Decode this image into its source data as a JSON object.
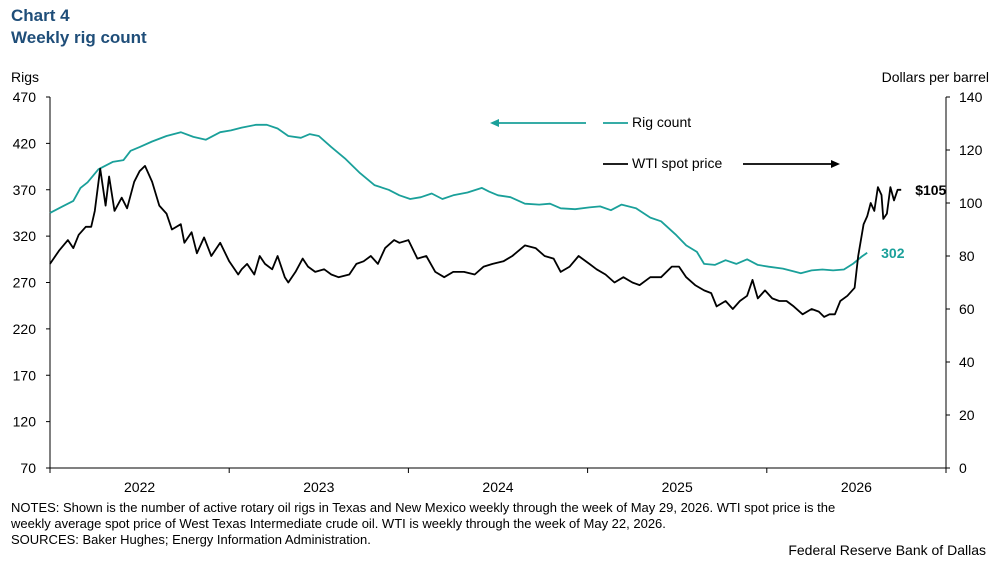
{
  "header": {
    "title_line1": "Chart 4",
    "title_line2": "Weekly rig count"
  },
  "notes": {
    "line1": "NOTES: Shown is the number of active rotary oil rigs in Texas and New Mexico weekly through the week of May 29, 2026. WTI spot price is the",
    "line2": "weekly average spot price of West Texas Intermediate crude oil. WTI is weekly through the week of May 22, 2026.",
    "sources": "SOURCES: Baker Hughes; Energy Information Administration."
  },
  "credit": "Federal Reserve Bank of Dallas",
  "colors": {
    "rig": "#1aa09a",
    "wti": "#000000",
    "axis": "#000000",
    "title": "#1f4e79"
  },
  "chart_data": {
    "type": "line",
    "left_axis_label": "Rigs",
    "right_axis_label": "Dollars per barrel",
    "left_ylim": [
      70,
      470
    ],
    "left_ticks": [
      "470",
      "420",
      "370",
      "320",
      "270",
      "220",
      "170",
      "120",
      "70"
    ],
    "right_ylim": [
      0,
      140
    ],
    "right_ticks": [
      "140",
      "120",
      "100",
      "80",
      "60",
      "40",
      "20",
      "0"
    ],
    "x_labels": [
      "2022",
      "2023",
      "2024",
      "2025",
      "2026"
    ],
    "xlim": [
      2021.55,
      2026.55
    ],
    "grid": false,
    "legend": [
      {
        "label": "Rig count",
        "arrow": "left"
      },
      {
        "label": "WTI spot price",
        "arrow": "right"
      }
    ],
    "end_labels": {
      "wti": "$105",
      "rig": "302"
    },
    "series": [
      {
        "name": "Rig count",
        "axis": "left",
        "points": [
          [
            2021.55,
            345
          ],
          [
            2021.62,
            352
          ],
          [
            2021.68,
            358
          ],
          [
            2021.72,
            372
          ],
          [
            2021.76,
            378
          ],
          [
            2021.82,
            392
          ],
          [
            2021.9,
            400
          ],
          [
            2021.96,
            402
          ],
          [
            2022.0,
            412
          ],
          [
            2022.05,
            416
          ],
          [
            2022.12,
            422
          ],
          [
            2022.2,
            428
          ],
          [
            2022.28,
            432
          ],
          [
            2022.35,
            427
          ],
          [
            2022.42,
            424
          ],
          [
            2022.5,
            432
          ],
          [
            2022.56,
            434
          ],
          [
            2022.62,
            437
          ],
          [
            2022.7,
            440
          ],
          [
            2022.76,
            440
          ],
          [
            2022.82,
            436
          ],
          [
            2022.88,
            428
          ],
          [
            2022.95,
            426
          ],
          [
            2023.0,
            430
          ],
          [
            2023.05,
            428
          ],
          [
            2023.12,
            416
          ],
          [
            2023.2,
            403
          ],
          [
            2023.28,
            388
          ],
          [
            2023.36,
            375
          ],
          [
            2023.44,
            370
          ],
          [
            2023.5,
            364
          ],
          [
            2023.56,
            360
          ],
          [
            2023.62,
            362
          ],
          [
            2023.68,
            366
          ],
          [
            2023.74,
            360
          ],
          [
            2023.8,
            364
          ],
          [
            2023.88,
            367
          ],
          [
            2023.96,
            372
          ],
          [
            2024.0,
            368
          ],
          [
            2024.05,
            364
          ],
          [
            2024.12,
            362
          ],
          [
            2024.2,
            355
          ],
          [
            2024.28,
            354
          ],
          [
            2024.34,
            355
          ],
          [
            2024.4,
            350
          ],
          [
            2024.48,
            349
          ],
          [
            2024.56,
            351
          ],
          [
            2024.62,
            352
          ],
          [
            2024.68,
            348
          ],
          [
            2024.74,
            354
          ],
          [
            2024.82,
            350
          ],
          [
            2024.9,
            340
          ],
          [
            2024.96,
            336
          ],
          [
            2025.04,
            322
          ],
          [
            2025.1,
            310
          ],
          [
            2025.16,
            303
          ],
          [
            2025.2,
            290
          ],
          [
            2025.26,
            289
          ],
          [
            2025.32,
            294
          ],
          [
            2025.38,
            290
          ],
          [
            2025.44,
            295
          ],
          [
            2025.5,
            289
          ],
          [
            2025.56,
            287
          ],
          [
            2025.64,
            285
          ],
          [
            2025.7,
            282
          ],
          [
            2025.74,
            280
          ],
          [
            2025.8,
            283
          ],
          [
            2025.86,
            284
          ],
          [
            2025.92,
            283
          ],
          [
            2025.98,
            284
          ],
          [
            2026.03,
            290
          ],
          [
            2026.08,
            298
          ],
          [
            2026.11,
            302
          ]
        ]
      },
      {
        "name": "WTI spot price",
        "axis": "right",
        "points": [
          [
            2021.55,
            77
          ],
          [
            2021.6,
            82
          ],
          [
            2021.65,
            86
          ],
          [
            2021.68,
            83
          ],
          [
            2021.71,
            88
          ],
          [
            2021.75,
            91
          ],
          [
            2021.78,
            91
          ],
          [
            2021.8,
            97
          ],
          [
            2021.83,
            113
          ],
          [
            2021.86,
            99
          ],
          [
            2021.88,
            110
          ],
          [
            2021.91,
            97
          ],
          [
            2021.95,
            102
          ],
          [
            2021.98,
            98
          ],
          [
            2022.02,
            108
          ],
          [
            2022.05,
            112
          ],
          [
            2022.08,
            114
          ],
          [
            2022.12,
            108
          ],
          [
            2022.16,
            99
          ],
          [
            2022.2,
            96
          ],
          [
            2022.23,
            90
          ],
          [
            2022.28,
            92
          ],
          [
            2022.3,
            85
          ],
          [
            2022.34,
            89
          ],
          [
            2022.37,
            81
          ],
          [
            2022.41,
            87
          ],
          [
            2022.45,
            80
          ],
          [
            2022.5,
            85
          ],
          [
            2022.55,
            78
          ],
          [
            2022.6,
            73
          ],
          [
            2022.62,
            75
          ],
          [
            2022.65,
            77
          ],
          [
            2022.69,
            73
          ],
          [
            2022.72,
            80
          ],
          [
            2022.75,
            77
          ],
          [
            2022.79,
            75
          ],
          [
            2022.82,
            80
          ],
          [
            2022.86,
            72
          ],
          [
            2022.88,
            70
          ],
          [
            2022.92,
            74
          ],
          [
            2022.96,
            79
          ],
          [
            2022.99,
            76
          ],
          [
            2023.03,
            74
          ],
          [
            2023.08,
            75
          ],
          [
            2023.12,
            73
          ],
          [
            2023.16,
            72
          ],
          [
            2023.22,
            73
          ],
          [
            2023.26,
            77
          ],
          [
            2023.3,
            78
          ],
          [
            2023.34,
            80
          ],
          [
            2023.38,
            77
          ],
          [
            2023.42,
            83
          ],
          [
            2023.47,
            86
          ],
          [
            2023.5,
            85
          ],
          [
            2023.55,
            86
          ],
          [
            2023.6,
            79
          ],
          [
            2023.65,
            80
          ],
          [
            2023.7,
            74
          ],
          [
            2023.75,
            72
          ],
          [
            2023.8,
            74
          ],
          [
            2023.86,
            74
          ],
          [
            2023.92,
            73
          ],
          [
            2023.97,
            76
          ],
          [
            2024.02,
            77
          ],
          [
            2024.08,
            78
          ],
          [
            2024.13,
            80
          ],
          [
            2024.2,
            84
          ],
          [
            2024.26,
            83
          ],
          [
            2024.31,
            80
          ],
          [
            2024.36,
            79
          ],
          [
            2024.4,
            74
          ],
          [
            2024.45,
            76
          ],
          [
            2024.5,
            80
          ],
          [
            2024.56,
            77
          ],
          [
            2024.6,
            75
          ],
          [
            2024.65,
            73
          ],
          [
            2024.7,
            70
          ],
          [
            2024.75,
            72
          ],
          [
            2024.8,
            70
          ],
          [
            2024.84,
            69
          ],
          [
            2024.9,
            72
          ],
          [
            2024.96,
            72
          ],
          [
            2025.02,
            76
          ],
          [
            2025.06,
            76
          ],
          [
            2025.1,
            72
          ],
          [
            2025.15,
            69
          ],
          [
            2025.2,
            67
          ],
          [
            2025.24,
            66
          ],
          [
            2025.27,
            61
          ],
          [
            2025.32,
            63
          ],
          [
            2025.36,
            60
          ],
          [
            2025.4,
            63
          ],
          [
            2025.44,
            65
          ],
          [
            2025.47,
            71
          ],
          [
            2025.5,
            64
          ],
          [
            2025.54,
            67
          ],
          [
            2025.58,
            64
          ],
          [
            2025.62,
            63
          ],
          [
            2025.66,
            63
          ],
          [
            2025.7,
            61
          ],
          [
            2025.75,
            58
          ],
          [
            2025.8,
            60
          ],
          [
            2025.84,
            59
          ],
          [
            2025.87,
            57
          ],
          [
            2025.9,
            58
          ],
          [
            2025.93,
            58
          ],
          [
            2025.96,
            63
          ],
          [
            2026.0,
            65
          ],
          [
            2026.04,
            68
          ],
          [
            2026.06,
            80
          ],
          [
            2026.09,
            92
          ],
          [
            2026.11,
            95
          ],
          [
            2026.13,
            100
          ],
          [
            2026.15,
            97
          ],
          [
            2026.17,
            106
          ],
          [
            2026.19,
            103
          ],
          [
            2026.2,
            94
          ],
          [
            2026.22,
            96
          ],
          [
            2026.24,
            106
          ],
          [
            2026.26,
            101
          ],
          [
            2026.28,
            105
          ],
          [
            2026.3,
            105
          ]
        ]
      }
    ]
  }
}
